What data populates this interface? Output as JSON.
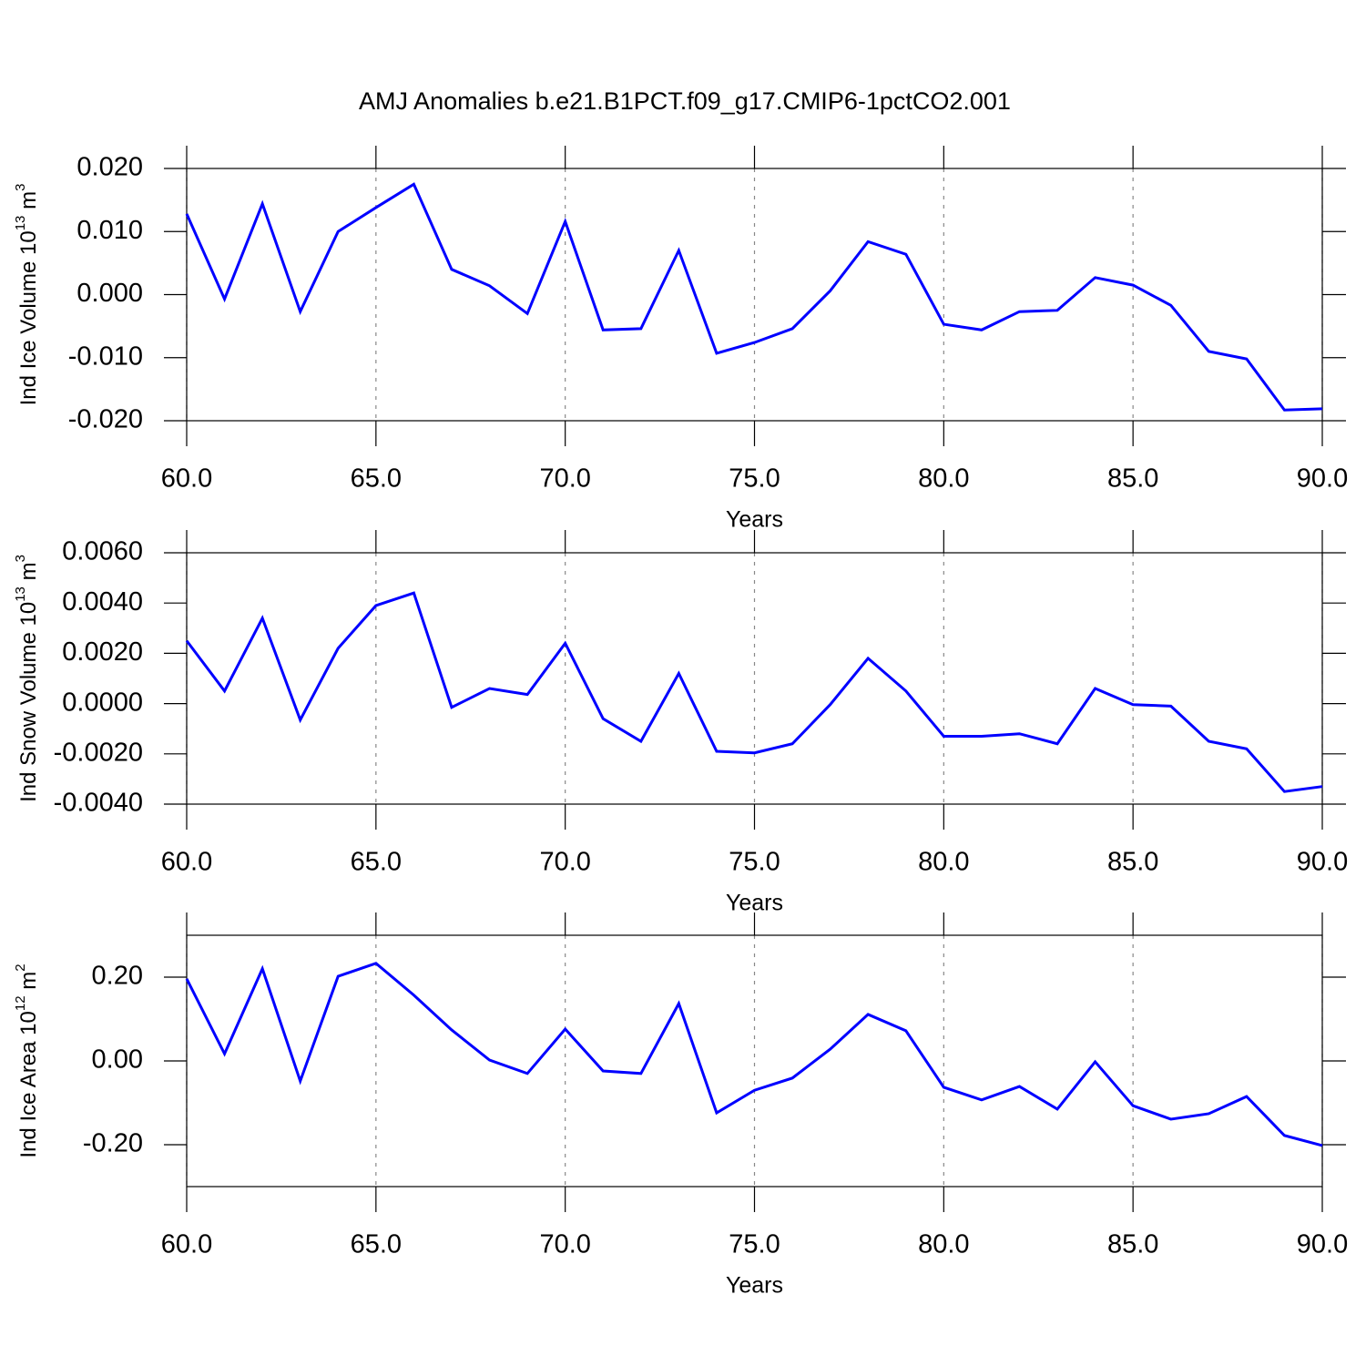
{
  "title": "AMJ Anomalies b.e21.B1PCT.f09_g17.CMIP6-1pctCO2.001",
  "chart_data": [
    {
      "type": "line",
      "xlabel": "Years",
      "ylabel": [
        "Ind Ice Volume 10",
        "13",
        " m",
        "3"
      ],
      "x": [
        60,
        61,
        62,
        63,
        64,
        65,
        66,
        67,
        68,
        69,
        70,
        71,
        72,
        73,
        74,
        75,
        76,
        77,
        78,
        79,
        80,
        81,
        82,
        83,
        84,
        85,
        86,
        87,
        88,
        89,
        90
      ],
      "series": [
        {
          "color": "#0000ff",
          "values": [
            0.0128,
            -0.0007,
            0.0144,
            -0.0027,
            0.01,
            0.0138,
            0.0175,
            0.004,
            0.0014,
            -0.003,
            0.0116,
            -0.0056,
            -0.0054,
            0.007,
            -0.0093,
            -0.0076,
            -0.0054,
            0.0006,
            0.0084,
            0.0064,
            -0.0047,
            -0.0056,
            -0.0027,
            -0.0025,
            0.0027,
            0.0015,
            -0.0017,
            -0.009,
            -0.0102,
            -0.0183,
            -0.0181
          ]
        }
      ],
      "xlim": [
        60,
        90
      ],
      "xticks": [
        {
          "value": 60,
          "label": "60.0"
        },
        {
          "value": 65,
          "label": "65.0"
        },
        {
          "value": 70,
          "label": "70.0"
        },
        {
          "value": 75,
          "label": "75.0"
        },
        {
          "value": 80,
          "label": "80.0"
        },
        {
          "value": 85,
          "label": "85.0"
        },
        {
          "value": 90,
          "label": "90.0"
        }
      ],
      "ylim": [
        -0.02,
        0.02
      ],
      "yticks": [
        {
          "value": -0.02,
          "label": "-0.020"
        },
        {
          "value": -0.01,
          "label": "-0.010"
        },
        {
          "value": 0,
          "label": "0.000"
        },
        {
          "value": 0.01,
          "label": "0.010"
        },
        {
          "value": 0.02,
          "label": "0.020"
        }
      ],
      "grid": true
    },
    {
      "type": "line",
      "xlabel": "Years",
      "ylabel": [
        "Ind Snow Volume 10",
        "13",
        " m",
        "3"
      ],
      "x": [
        60,
        61,
        62,
        63,
        64,
        65,
        66,
        67,
        68,
        69,
        70,
        71,
        72,
        73,
        74,
        75,
        76,
        77,
        78,
        79,
        80,
        81,
        82,
        83,
        84,
        85,
        86,
        87,
        88,
        89,
        90
      ],
      "series": [
        {
          "color": "#0000ff",
          "values": [
            0.0025,
            0.0005,
            0.0034,
            -0.00065,
            0.0022,
            0.0039,
            0.0044,
            -0.00015,
            0.0006,
            0.00036,
            0.0024,
            -0.0006,
            -0.0015,
            0.0012,
            -0.0019,
            -0.00196,
            -0.0016,
            -4e-05,
            0.0018,
            0.0005,
            -0.0013,
            -0.0013,
            -0.0012,
            -0.0016,
            0.0006,
            -4e-05,
            -0.0001,
            -0.0015,
            -0.0018,
            -0.0035,
            -0.0033
          ]
        }
      ],
      "xlim": [
        60,
        90
      ],
      "xticks": [
        {
          "value": 60,
          "label": "60.0"
        },
        {
          "value": 65,
          "label": "65.0"
        },
        {
          "value": 70,
          "label": "70.0"
        },
        {
          "value": 75,
          "label": "75.0"
        },
        {
          "value": 80,
          "label": "80.0"
        },
        {
          "value": 85,
          "label": "85.0"
        },
        {
          "value": 90,
          "label": "90.0"
        }
      ],
      "ylim": [
        -0.004,
        0.006
      ],
      "yticks": [
        {
          "value": -0.004,
          "label": "-0.0040"
        },
        {
          "value": -0.002,
          "label": "-0.0020"
        },
        {
          "value": 0,
          "label": "0.0000"
        },
        {
          "value": 0.002,
          "label": "0.0020"
        },
        {
          "value": 0.004,
          "label": "0.0040"
        },
        {
          "value": 0.006,
          "label": "0.0060"
        }
      ],
      "grid": true
    },
    {
      "type": "line",
      "xlabel": "Years",
      "ylabel": [
        "Ind Ice Area 10",
        "12",
        " m",
        "2"
      ],
      "x": [
        60,
        61,
        62,
        63,
        64,
        65,
        66,
        67,
        68,
        69,
        70,
        71,
        72,
        73,
        74,
        75,
        76,
        77,
        78,
        79,
        80,
        81,
        82,
        83,
        84,
        85,
        86,
        87,
        88,
        89,
        90
      ],
      "series": [
        {
          "color": "#0000ff",
          "values": [
            0.196,
            0.017,
            0.22,
            -0.048,
            0.202,
            0.233,
            0.157,
            0.074,
            0.002,
            -0.03,
            0.076,
            -0.024,
            -0.03,
            0.137,
            -0.124,
            -0.07,
            -0.041,
            0.028,
            0.111,
            0.072,
            -0.063,
            -0.093,
            -0.061,
            -0.115,
            -0.002,
            -0.107,
            -0.139,
            -0.126,
            -0.085,
            -0.178,
            -0.202
          ]
        }
      ],
      "xlim": [
        60,
        90
      ],
      "xticks": [
        {
          "value": 60,
          "label": "60.0"
        },
        {
          "value": 65,
          "label": "65.0"
        },
        {
          "value": 70,
          "label": "70.0"
        },
        {
          "value": 75,
          "label": "75.0"
        },
        {
          "value": 80,
          "label": "80.0"
        },
        {
          "value": 85,
          "label": "85.0"
        },
        {
          "value": 90,
          "label": "90.0"
        }
      ],
      "ylim": [
        -0.3,
        0.3
      ],
      "yticks": [
        {
          "value": -0.2,
          "label": "-0.20"
        },
        {
          "value": 0,
          "label": "0.00"
        },
        {
          "value": 0.2,
          "label": "0.20"
        }
      ],
      "grid": true
    }
  ]
}
